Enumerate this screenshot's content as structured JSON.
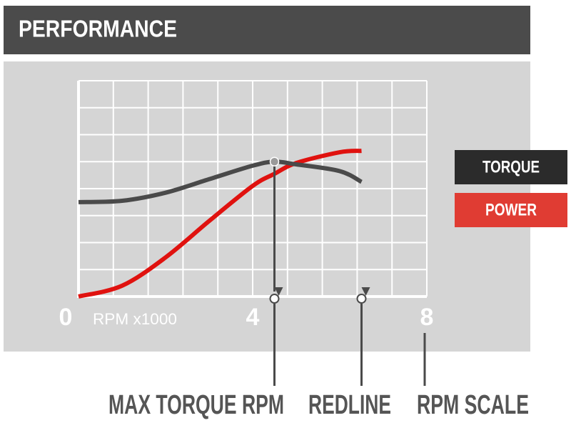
{
  "chart_data": {
    "type": "line",
    "title": "PERFORMANCE",
    "x_label": "RPM x1000",
    "x": [
      0,
      1,
      2,
      3,
      4,
      4.5,
      5,
      6,
      6.5
    ],
    "series": [
      {
        "name": "TORQUE",
        "color": "#4a4a4a",
        "values": [
          3.5,
          3.55,
          3.85,
          4.35,
          4.85,
          5.0,
          4.9,
          4.65,
          4.25
        ]
      },
      {
        "name": "POWER",
        "color": "#e0120f",
        "values": [
          0,
          0.4,
          1.45,
          2.8,
          4.1,
          4.55,
          4.95,
          5.35,
          5.4
        ]
      }
    ],
    "xlim": [
      0,
      8
    ],
    "xticks": [
      0,
      4,
      8
    ],
    "xgrid": [
      0,
      0.8,
      1.6,
      2.4,
      3.2,
      4,
      4.8,
      5.6,
      6.4,
      7.2,
      8
    ],
    "ylim": [
      0,
      8
    ],
    "yticks": [
      0,
      1,
      2,
      3,
      4,
      5,
      6,
      7,
      8
    ],
    "grid": true,
    "legend": "right",
    "annotations": [
      {
        "label": "MAX TORQUE RPM",
        "x": 4.5
      },
      {
        "label": "REDLINE",
        "x": 6.5
      },
      {
        "label": "RPM SCALE",
        "x": 8
      }
    ]
  }
}
